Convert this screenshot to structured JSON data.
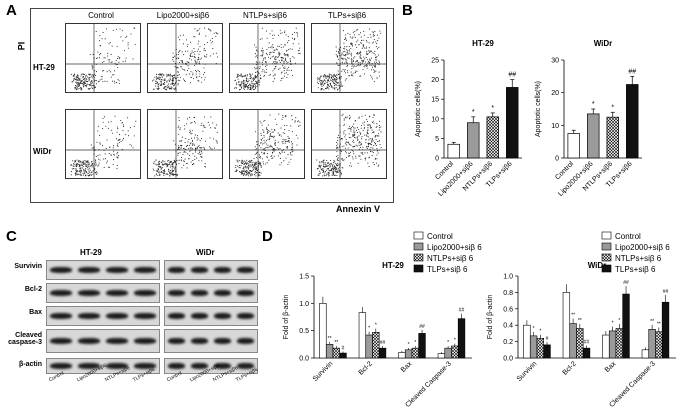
{
  "panels": {
    "A": "A",
    "B": "B",
    "C": "C",
    "D": "D"
  },
  "flow": {
    "columns": [
      "Control",
      "Lipo2000+siβ6",
      "NTLPs+siβ6",
      "TLPs+siβ6"
    ],
    "rows": [
      "HT-29",
      "WiDr"
    ],
    "y_axis": "PI",
    "x_axis": "Annexin V"
  },
  "blot": {
    "groups": [
      "HT-29",
      "WiDr"
    ],
    "proteins": [
      "Survivin",
      "Bcl-2",
      "Bax",
      "Cleaved caspase-3",
      "β-actin"
    ],
    "lanes": [
      "Control",
      "Lipo2000+siβ6",
      "NTLPs+siβ6",
      "TLPs+siβ6"
    ]
  },
  "chart_data": [
    {
      "type": "bar",
      "title": "HT-29",
      "ylabel": "Apoptotic cells(%)",
      "ylim": [
        0,
        25
      ],
      "yticks": [
        0,
        5,
        10,
        15,
        20,
        25
      ],
      "categories": [
        "Control",
        "Lipo2000+siβ6",
        "NTLPs+siβ6",
        "TLPs+siβ6"
      ],
      "values": [
        3.5,
        9,
        10.5,
        18
      ],
      "errors": [
        0.5,
        1.5,
        1,
        2
      ],
      "annotations": [
        "",
        "*",
        "*",
        "##"
      ]
    },
    {
      "type": "bar",
      "title": "WiDr",
      "ylabel": "Apoptotic cells(%)",
      "ylim": [
        0,
        30
      ],
      "yticks": [
        0,
        10,
        20,
        30
      ],
      "categories": [
        "Control",
        "Lipo2000+siβ6",
        "NTLPs+siβ6",
        "TLPs+siβ6"
      ],
      "values": [
        7.5,
        13.5,
        12.5,
        22.5
      ],
      "errors": [
        1,
        1.5,
        1.5,
        2.5
      ],
      "annotations": [
        "",
        "*",
        "*",
        "##"
      ]
    },
    {
      "type": "bar",
      "title": "HT-29",
      "ylabel": "Fold of β-actin",
      "ylim": [
        0,
        1.5
      ],
      "yticks": [
        0.0,
        0.5,
        1.0,
        1.5
      ],
      "categories": [
        "Survivin",
        "Bcl-2",
        "Bax",
        "Cleaved Caspase-3"
      ],
      "series": [
        {
          "name": "Control",
          "values": [
            1.0,
            0.83,
            0.1,
            0.08
          ]
        },
        {
          "name": "Lipo2000+siβ 6",
          "values": [
            0.25,
            0.42,
            0.15,
            0.18
          ]
        },
        {
          "name": "NTLPs+siβ 6",
          "values": [
            0.18,
            0.47,
            0.18,
            0.22
          ]
        },
        {
          "name": "TLPs+siβ 6",
          "values": [
            0.09,
            0.18,
            0.45,
            0.72
          ]
        }
      ],
      "annotations": [
        [
          "",
          "**",
          "**",
          "#"
        ],
        [
          "",
          "*",
          "*",
          "##"
        ],
        [
          "",
          "*",
          "*",
          "##"
        ],
        [
          "",
          "*",
          "*",
          "##"
        ]
      ]
    },
    {
      "type": "bar",
      "title": "WiDr",
      "ylabel": "Fold of β-actin",
      "ylim": [
        0,
        1.0
      ],
      "yticks": [
        0.0,
        0.2,
        0.4,
        0.6,
        0.8,
        1.0
      ],
      "categories": [
        "Survivin",
        "Bcl-2",
        "Bax",
        "Cleaved Caspase-3"
      ],
      "series": [
        {
          "name": "Control",
          "values": [
            0.4,
            0.8,
            0.28,
            0.1
          ]
        },
        {
          "name": "Lipo2000+siβ 6",
          "values": [
            0.27,
            0.42,
            0.33,
            0.35
          ]
        },
        {
          "name": "NTLPs+siβ 6",
          "values": [
            0.24,
            0.36,
            0.36,
            0.32
          ]
        },
        {
          "name": "TLPs+siβ 6",
          "values": [
            0.16,
            0.12,
            0.78,
            0.68
          ]
        }
      ],
      "annotations": [
        [
          "",
          "*",
          "*",
          "#"
        ],
        [
          "",
          "**",
          "**",
          "##"
        ],
        [
          "",
          "*",
          "*",
          "##"
        ],
        [
          "",
          "**",
          "**",
          "##"
        ]
      ]
    }
  ],
  "legend": [
    "Control",
    "Lipo2000+siβ 6",
    "NTLPs+siβ 6",
    "TLPs+siβ 6"
  ]
}
